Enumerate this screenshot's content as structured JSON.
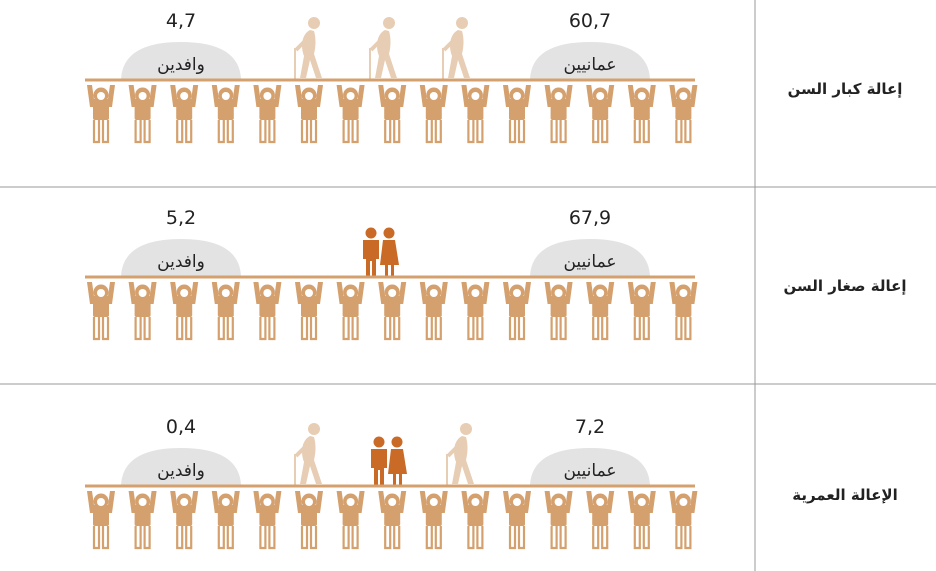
{
  "rows": [
    {
      "label": "إعالة كبار السن",
      "expats": {
        "value": "4,7",
        "label": "وافدين"
      },
      "omanis": {
        "value": "60,7",
        "label": "عمانيين"
      }
    },
    {
      "label": "إعالة صغار السن",
      "expats": {
        "value": "5,2",
        "label": "وافدين"
      },
      "omanis": {
        "value": "67,9",
        "label": "عمانيين"
      }
    },
    {
      "label": "الإعالة العمرية",
      "expats": {
        "value": "0,4",
        "label": "وافدين"
      },
      "omanis": {
        "value": "7,2",
        "label": "عمانيين"
      }
    }
  ]
}
